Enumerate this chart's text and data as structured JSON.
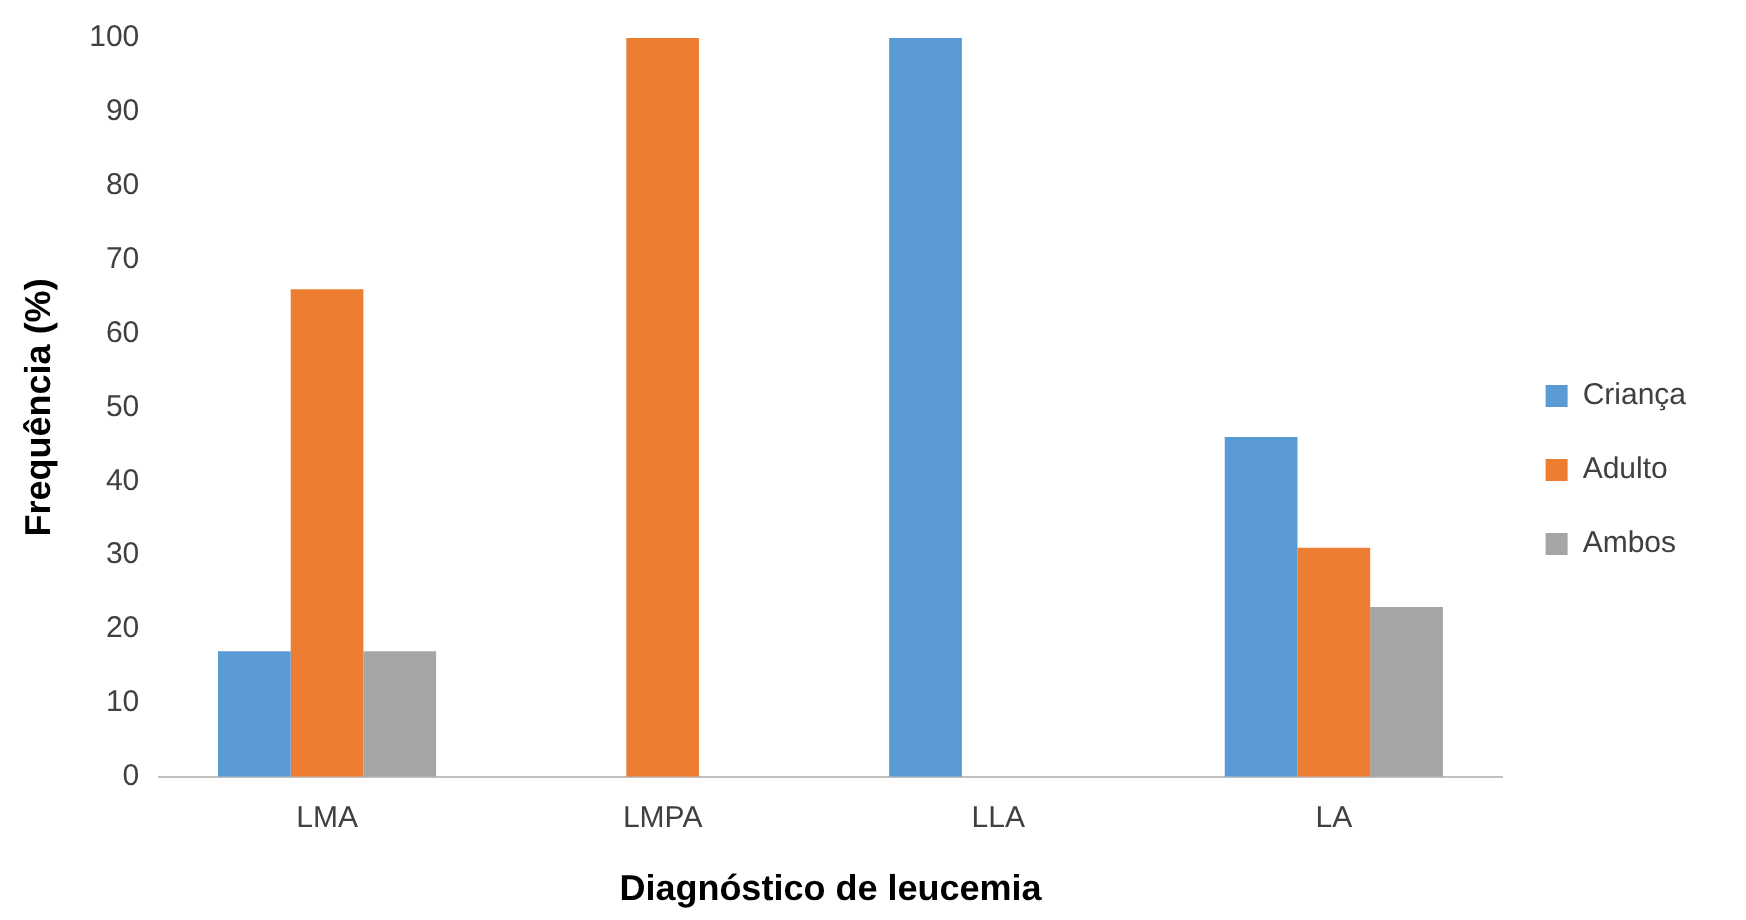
{
  "chart_data": {
    "type": "bar",
    "xlabel": "Diagnóstico de leucemia",
    "ylabel": "Frequência (%)",
    "categories": [
      "LMA",
      "LMPA",
      "LLA",
      "LA"
    ],
    "series": [
      {
        "name": "Criança",
        "color": "#5b9bd5",
        "values": [
          17,
          0,
          100,
          46
        ]
      },
      {
        "name": "Adulto",
        "color": "#ed7d31",
        "values": [
          66,
          100,
          0,
          31
        ]
      },
      {
        "name": "Ambos",
        "color": "#a5a5a5",
        "values": [
          17,
          0,
          0,
          23
        ]
      }
    ],
    "ylim": [
      0,
      100
    ],
    "yticks": [
      0,
      10,
      20,
      30,
      40,
      50,
      60,
      70,
      80,
      90,
      100
    ],
    "grid": false,
    "legend": "right"
  }
}
